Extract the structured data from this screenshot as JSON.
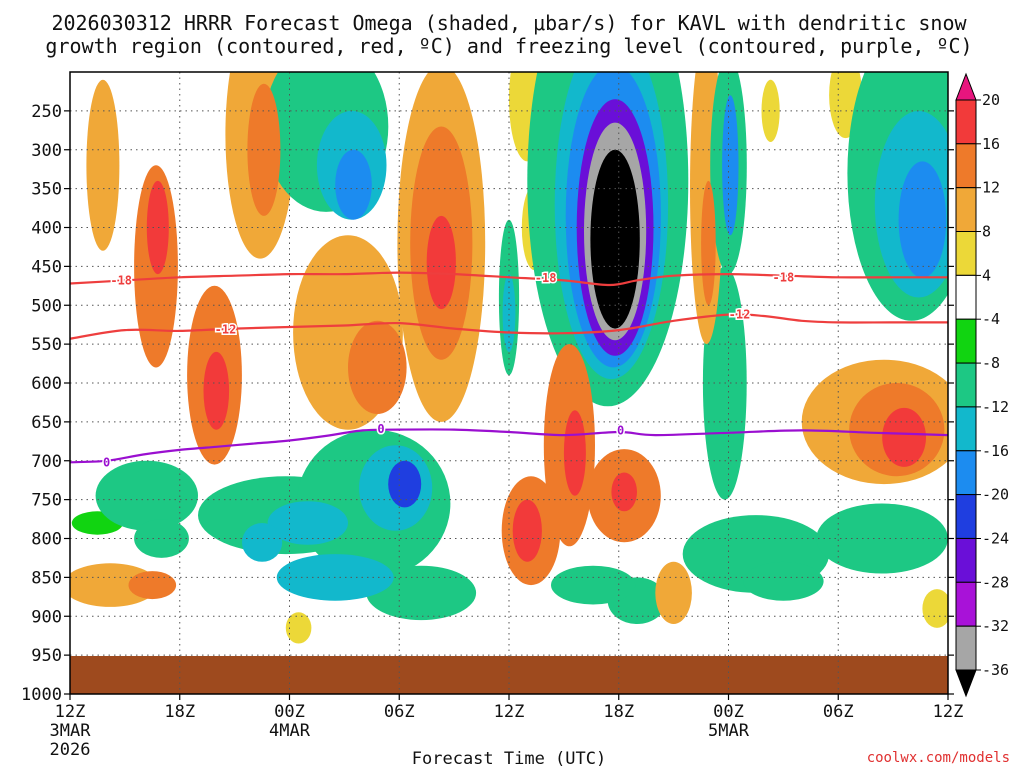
{
  "chart_data": {
    "type": "heatmap",
    "title_line1": "2026030312 HRRR Forecast Omega (shaded, μbar/s) for KAVL with dendritic snow",
    "title_line2": "growth region (contoured, red, ºC) and freezing level (contoured, purple, ºC)",
    "xlabel": "Forecast Time (UTC)",
    "xlim": [
      0,
      48
    ],
    "ylim": [
      200,
      1000
    ],
    "ground_level_hpa": 950,
    "x_ticks": [
      {
        "x": 0,
        "label": "12Z",
        "sub1": "3MAR",
        "sub2": "2026"
      },
      {
        "x": 6,
        "label": "18Z",
        "sub1": "",
        "sub2": ""
      },
      {
        "x": 12,
        "label": "00Z",
        "sub1": "4MAR",
        "sub2": ""
      },
      {
        "x": 18,
        "label": "06Z",
        "sub1": "",
        "sub2": ""
      },
      {
        "x": 24,
        "label": "12Z",
        "sub1": "",
        "sub2": ""
      },
      {
        "x": 30,
        "label": "18Z",
        "sub1": "",
        "sub2": ""
      },
      {
        "x": 36,
        "label": "00Z",
        "sub1": "5MAR",
        "sub2": ""
      },
      {
        "x": 42,
        "label": "06Z",
        "sub1": "",
        "sub2": ""
      },
      {
        "x": 48,
        "label": "12Z",
        "sub1": "",
        "sub2": ""
      }
    ],
    "y_ticks": [
      {
        "p": 250,
        "label": "250"
      },
      {
        "p": 300,
        "label": "300"
      },
      {
        "p": 350,
        "label": "350"
      },
      {
        "p": 400,
        "label": "400"
      },
      {
        "p": 450,
        "label": "450"
      },
      {
        "p": 500,
        "label": "500"
      },
      {
        "p": 550,
        "label": "550"
      },
      {
        "p": 600,
        "label": "600"
      },
      {
        "p": 650,
        "label": "650"
      },
      {
        "p": 700,
        "label": "700"
      },
      {
        "p": 750,
        "label": "750"
      },
      {
        "p": 800,
        "label": "800"
      },
      {
        "p": 850,
        "label": "850"
      },
      {
        "p": 900,
        "label": "900"
      },
      {
        "p": 950,
        "label": "950"
      },
      {
        "p": 1000,
        "label": "1000"
      }
    ],
    "colorbar": {
      "levels": [
        {
          "from": 20,
          "to": null,
          "color": "#e8157e"
        },
        {
          "from": 16,
          "to": 20,
          "color": "#f23a3a"
        },
        {
          "from": 12,
          "to": 16,
          "color": "#ee7a2a"
        },
        {
          "from": 8,
          "to": 12,
          "color": "#f0a838"
        },
        {
          "from": 4,
          "to": 8,
          "color": "#ecd838"
        },
        {
          "from": -4,
          "to": 4,
          "color": "#ffffff"
        },
        {
          "from": -8,
          "to": -4,
          "color": "#11d411"
        },
        {
          "from": -12,
          "to": -8,
          "color": "#1dc884"
        },
        {
          "from": -16,
          "to": -12,
          "color": "#12b8cc"
        },
        {
          "from": -20,
          "to": -16,
          "color": "#1c8cf0"
        },
        {
          "from": -24,
          "to": -20,
          "color": "#1f3ee0"
        },
        {
          "from": -28,
          "to": -24,
          "color": "#6a0fd8"
        },
        {
          "from": -32,
          "to": -28,
          "color": "#a812d8"
        },
        {
          "from": -36,
          "to": -32,
          "color": "#a6a6a6"
        },
        {
          "from": null,
          "to": -36,
          "color": "#000000"
        }
      ],
      "tick_labels": [
        "20",
        "16",
        "12",
        "8",
        "4",
        "-4",
        "-8",
        "-12",
        "-16",
        "-20",
        "-24",
        "-28",
        "-32",
        "-36"
      ]
    },
    "contours": [
      {
        "name": "dgz-18",
        "label": "-18",
        "color": "#ee3e3e",
        "points": [
          [
            0,
            472
          ],
          [
            3,
            468
          ],
          [
            6,
            464
          ],
          [
            9,
            462
          ],
          [
            12,
            460
          ],
          [
            15,
            460
          ],
          [
            18,
            458
          ],
          [
            21,
            460
          ],
          [
            24,
            464
          ],
          [
            27,
            468
          ],
          [
            29.5,
            474
          ],
          [
            31,
            468
          ],
          [
            33,
            462
          ],
          [
            36,
            460
          ],
          [
            39,
            462
          ],
          [
            42,
            464
          ],
          [
            45,
            464
          ],
          [
            48,
            464
          ]
        ],
        "label_positions": [
          [
            2.8,
            468
          ],
          [
            26,
            465
          ],
          [
            39,
            464
          ]
        ]
      },
      {
        "name": "dgz-12",
        "label": "-12",
        "color": "#ee3e3e",
        "points": [
          [
            0,
            543
          ],
          [
            3,
            532
          ],
          [
            6,
            533
          ],
          [
            9,
            530
          ],
          [
            12,
            528
          ],
          [
            15,
            526
          ],
          [
            18,
            523
          ],
          [
            21,
            530
          ],
          [
            24,
            535
          ],
          [
            27,
            536
          ],
          [
            30,
            532
          ],
          [
            33,
            520
          ],
          [
            36,
            512
          ],
          [
            38,
            514
          ],
          [
            40,
            520
          ],
          [
            42,
            522
          ],
          [
            45,
            522
          ],
          [
            48,
            522
          ]
        ],
        "label_positions": [
          [
            8.5,
            531
          ],
          [
            36.6,
            512
          ]
        ]
      },
      {
        "name": "freezing-level",
        "label": "0",
        "color": "#9a0fd0",
        "points": [
          [
            0,
            702
          ],
          [
            2,
            700
          ],
          [
            4,
            692
          ],
          [
            6,
            686
          ],
          [
            8,
            682
          ],
          [
            10,
            678
          ],
          [
            12,
            674
          ],
          [
            14,
            668
          ],
          [
            16,
            661
          ],
          [
            18,
            660
          ],
          [
            21,
            660
          ],
          [
            24,
            663
          ],
          [
            27,
            667
          ],
          [
            30,
            663
          ],
          [
            32,
            667
          ],
          [
            36,
            664
          ],
          [
            40,
            661
          ],
          [
            44,
            664
          ],
          [
            48,
            667
          ]
        ],
        "label_positions": [
          [
            2,
            702
          ],
          [
            17,
            659
          ],
          [
            30.1,
            661
          ]
        ]
      }
    ],
    "omega_blobs": [
      {
        "x": 1.8,
        "p": 320,
        "rx": 0.9,
        "rp": 110,
        "v": 8
      },
      {
        "x": 2.2,
        "p": 860,
        "rx": 2.6,
        "rp": 28,
        "v": 10
      },
      {
        "x": 4.5,
        "p": 860,
        "rx": 1.3,
        "rp": 18,
        "v": 14
      },
      {
        "x": 4.2,
        "p": 745,
        "rx": 2.8,
        "rp": 45,
        "v": -9
      },
      {
        "x": 5.0,
        "p": 800,
        "rx": 1.5,
        "rp": 25,
        "v": -11
      },
      {
        "x": 1.5,
        "p": 780,
        "rx": 1.4,
        "rp": 15,
        "v": -5
      },
      {
        "x": 4.7,
        "p": 450,
        "rx": 1.2,
        "rp": 130,
        "v": 14
      },
      {
        "x": 4.8,
        "p": 400,
        "rx": 0.6,
        "rp": 60,
        "v": 17
      },
      {
        "x": 7.9,
        "p": 590,
        "rx": 1.5,
        "rp": 115,
        "v": 14
      },
      {
        "x": 8.0,
        "p": 610,
        "rx": 0.7,
        "rp": 50,
        "v": 18
      },
      {
        "x": 10.4,
        "p": 280,
        "rx": 1.9,
        "rp": 160,
        "v": 10
      },
      {
        "x": 10.6,
        "p": 300,
        "rx": 0.9,
        "rp": 85,
        "v": 13
      },
      {
        "x": 14.0,
        "p": 270,
        "rx": 3.4,
        "rp": 110,
        "v": -10
      },
      {
        "x": 15.4,
        "p": 320,
        "rx": 1.9,
        "rp": 70,
        "v": -13
      },
      {
        "x": 15.5,
        "p": 345,
        "rx": 1.0,
        "rp": 45,
        "v": -17
      },
      {
        "x": 11.8,
        "p": 770,
        "rx": 4.8,
        "rp": 50,
        "v": -10
      },
      {
        "x": 13.0,
        "p": 780,
        "rx": 2.2,
        "rp": 28,
        "v": -13
      },
      {
        "x": 16.6,
        "p": 755,
        "rx": 4.2,
        "rp": 95,
        "v": -12
      },
      {
        "x": 17.8,
        "p": 735,
        "rx": 2.0,
        "rp": 55,
        "v": -16
      },
      {
        "x": 18.3,
        "p": 730,
        "rx": 0.9,
        "rp": 30,
        "v": -23
      },
      {
        "x": 14.5,
        "p": 850,
        "rx": 3.2,
        "rp": 30,
        "v": -14
      },
      {
        "x": 19.2,
        "p": 870,
        "rx": 3.0,
        "rp": 35,
        "v": -9
      },
      {
        "x": 10.5,
        "p": 805,
        "rx": 1.1,
        "rp": 25,
        "v": -14
      },
      {
        "x": 15.2,
        "p": 535,
        "rx": 3.0,
        "rp": 125,
        "v": 10
      },
      {
        "x": 16.8,
        "p": 580,
        "rx": 1.6,
        "rp": 60,
        "v": 12
      },
      {
        "x": 20.3,
        "p": 420,
        "rx": 2.4,
        "rp": 230,
        "v": 9
      },
      {
        "x": 20.3,
        "p": 420,
        "rx": 1.7,
        "rp": 150,
        "v": 13
      },
      {
        "x": 20.3,
        "p": 445,
        "rx": 0.8,
        "rp": 60,
        "v": 18
      },
      {
        "x": 12.5,
        "p": 915,
        "rx": 0.7,
        "rp": 20,
        "v": 7
      },
      {
        "x": 19.0,
        "p": 470,
        "rx": 1.0,
        "rp": 25,
        "v": -5
      },
      {
        "x": 24.0,
        "p": 490,
        "rx": 0.55,
        "rp": 100,
        "v": -12
      },
      {
        "x": 24.0,
        "p": 510,
        "rx": 0.35,
        "rp": 50,
        "v": -15
      },
      {
        "x": 25.4,
        "p": 400,
        "rx": 0.7,
        "rp": 55,
        "v": 6
      },
      {
        "x": 25.2,
        "p": 790,
        "rx": 1.6,
        "rp": 70,
        "v": 14
      },
      {
        "x": 25.0,
        "p": 790,
        "rx": 0.8,
        "rp": 40,
        "v": 17
      },
      {
        "x": 27.3,
        "p": 680,
        "rx": 1.4,
        "rp": 130,
        "v": 13
      },
      {
        "x": 27.6,
        "p": 690,
        "rx": 0.6,
        "rp": 55,
        "v": 18
      },
      {
        "x": 30.3,
        "p": 745,
        "rx": 2.0,
        "rp": 60,
        "v": 15
      },
      {
        "x": 30.3,
        "p": 740,
        "rx": 0.7,
        "rp": 25,
        "v": 19
      },
      {
        "x": 33.0,
        "p": 870,
        "rx": 1.0,
        "rp": 40,
        "v": 11
      },
      {
        "x": 34.8,
        "p": 350,
        "rx": 0.9,
        "rp": 200,
        "v": 10
      },
      {
        "x": 34.9,
        "p": 420,
        "rx": 0.4,
        "rp": 80,
        "v": 15
      },
      {
        "x": 25.0,
        "p": 235,
        "rx": 1.0,
        "rp": 80,
        "v": 6
      },
      {
        "x": 29.4,
        "p": 340,
        "rx": 4.4,
        "rp": 290,
        "v": -10
      },
      {
        "x": 29.6,
        "p": 370,
        "rx": 3.1,
        "rp": 225,
        "v": -15
      },
      {
        "x": 29.7,
        "p": 385,
        "rx": 2.6,
        "rp": 195,
        "v": -20
      },
      {
        "x": 29.8,
        "p": 400,
        "rx": 2.1,
        "rp": 165,
        "v": -27
      },
      {
        "x": 29.8,
        "p": 405,
        "rx": 1.7,
        "rp": 140,
        "v": -33
      },
      {
        "x": 29.8,
        "p": 415,
        "rx": 1.35,
        "rp": 115,
        "v": -38
      },
      {
        "x": 28.6,
        "p": 860,
        "rx": 2.3,
        "rp": 25,
        "v": -10
      },
      {
        "x": 31.0,
        "p": 880,
        "rx": 1.6,
        "rp": 30,
        "v": -9
      },
      {
        "x": 35.8,
        "p": 600,
        "rx": 1.2,
        "rp": 150,
        "v": -9
      },
      {
        "x": 36.0,
        "p": 320,
        "rx": 1.0,
        "rp": 140,
        "v": -10
      },
      {
        "x": 36.1,
        "p": 320,
        "rx": 0.45,
        "rp": 90,
        "v": -19
      },
      {
        "x": 37.5,
        "p": 820,
        "rx": 4.0,
        "rp": 50,
        "v": -9
      },
      {
        "x": 39.0,
        "p": 855,
        "rx": 2.2,
        "rp": 25,
        "v": -12
      },
      {
        "x": 38.3,
        "p": 250,
        "rx": 0.5,
        "rp": 40,
        "v": 6
      },
      {
        "x": 42.4,
        "p": 230,
        "rx": 0.9,
        "rp": 55,
        "v": 6
      },
      {
        "x": 46.0,
        "p": 330,
        "rx": 3.5,
        "rp": 190,
        "v": -10
      },
      {
        "x": 46.4,
        "p": 370,
        "rx": 2.4,
        "rp": 120,
        "v": -14
      },
      {
        "x": 46.6,
        "p": 390,
        "rx": 1.3,
        "rp": 75,
        "v": -19
      },
      {
        "x": 44.5,
        "p": 650,
        "rx": 4.5,
        "rp": 80,
        "v": 9
      },
      {
        "x": 45.2,
        "p": 660,
        "rx": 2.6,
        "rp": 60,
        "v": 12
      },
      {
        "x": 45.6,
        "p": 670,
        "rx": 1.2,
        "rp": 38,
        "v": 16
      },
      {
        "x": 44.4,
        "p": 800,
        "rx": 3.6,
        "rp": 45,
        "v": -9
      },
      {
        "x": 47.4,
        "p": 890,
        "rx": 0.8,
        "rp": 25,
        "v": 6
      }
    ]
  },
  "footer": {
    "credit": "coolwx.com/models"
  }
}
